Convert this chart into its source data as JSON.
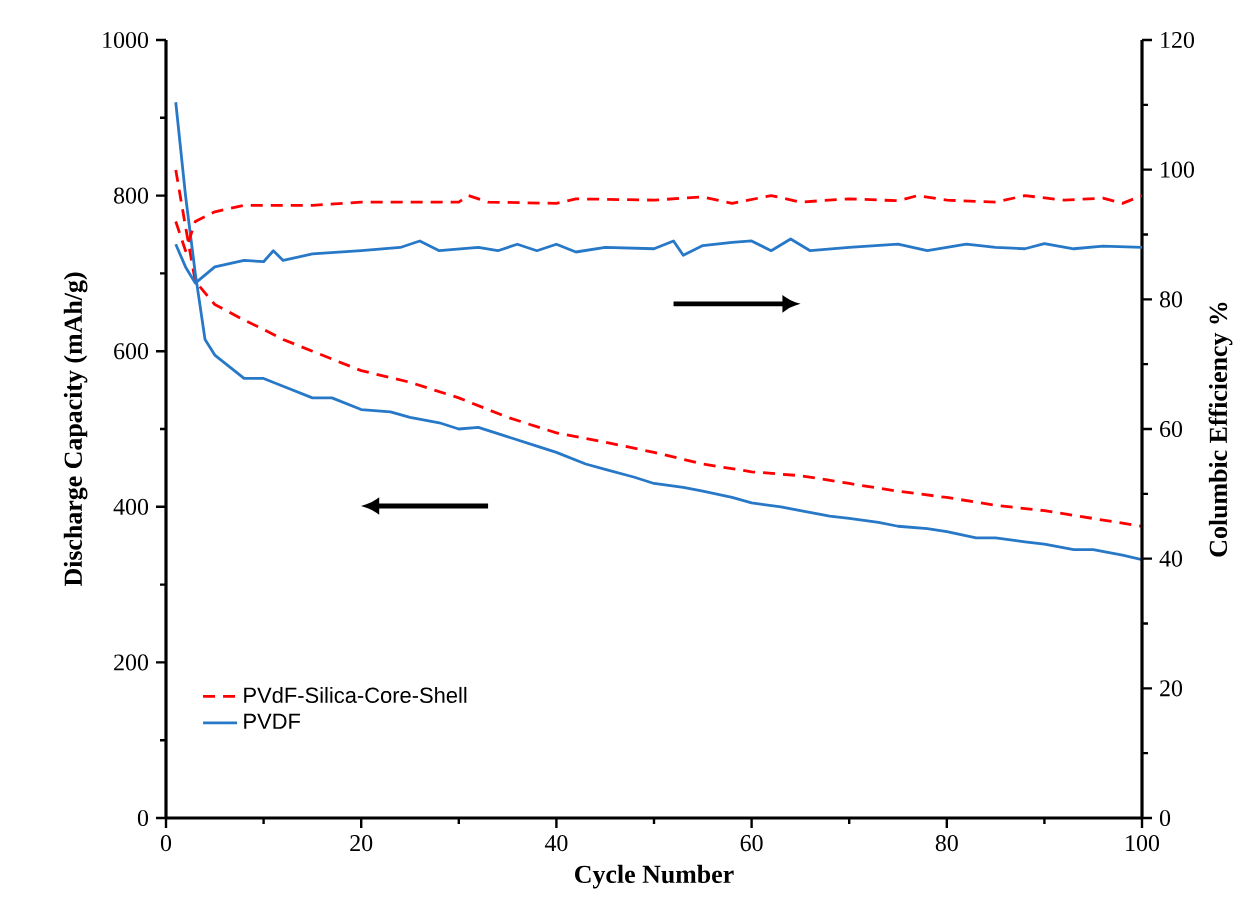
{
  "chart_data": {
    "type": "line",
    "xlabel": "Cycle Number",
    "ylabel": "Discharge Capacity (mAh/g)",
    "y2label": "Columbic Efficiency  %",
    "xlim": [
      0,
      100
    ],
    "xticks": [
      0,
      20,
      40,
      60,
      80,
      100
    ],
    "ylim": [
      0,
      1000
    ],
    "yticks": [
      0,
      200,
      400,
      600,
      800,
      1000
    ],
    "y2lim": [
      0,
      120
    ],
    "y2ticks": [
      0,
      20,
      40,
      60,
      80,
      100,
      120
    ],
    "legend": "bottom left",
    "grid": false,
    "marker": "none",
    "series": [
      {
        "name": "PVdF-Silica-Core-Shell",
        "color": "#ff0000",
        "line_style": "dashed",
        "x": [
          1,
          2,
          3,
          5,
          8,
          10,
          12,
          15,
          20,
          25,
          30,
          35,
          40,
          45,
          50,
          55,
          60,
          65,
          70,
          75,
          80,
          85,
          90,
          95,
          100
        ],
        "values": [
          833,
          760,
          690,
          660,
          640,
          628,
          615,
          600,
          575,
          560,
          540,
          515,
          495,
          483,
          470,
          455,
          445,
          440,
          430,
          420,
          412,
          402,
          395,
          385,
          375
        ]
      },
      {
        "name": "PVDF",
        "color": "#2878c8",
        "line_style": "solid",
        "x": [
          1,
          2,
          3,
          4,
          5,
          7,
          8,
          10,
          12,
          15,
          17,
          20,
          23,
          25,
          28,
          30,
          32,
          35,
          38,
          40,
          43,
          45,
          48,
          50,
          53,
          55,
          58,
          60,
          63,
          65,
          68,
          70,
          73,
          75,
          78,
          80,
          83,
          85,
          88,
          90,
          93,
          95,
          98,
          100
        ],
        "values": [
          920,
          800,
          700,
          615,
          595,
          575,
          565,
          565,
          555,
          540,
          540,
          525,
          522,
          515,
          508,
          500,
          502,
          490,
          478,
          470,
          455,
          448,
          438,
          430,
          425,
          420,
          412,
          405,
          400,
          395,
          388,
          385,
          380,
          375,
          372,
          368,
          360,
          360,
          355,
          352,
          345,
          345,
          338,
          332
        ]
      },
      {
        "color": "#ff0000",
        "line_style": "dashed",
        "axis": "y2",
        "x": [
          1,
          2,
          3,
          5,
          8,
          10,
          15,
          20,
          25,
          30,
          31,
          33,
          40,
          42,
          50,
          55,
          58,
          62,
          65,
          70,
          75,
          77,
          80,
          85,
          88,
          92,
          96,
          98,
          100
        ],
        "values": [
          92,
          87.5,
          92,
          93.5,
          94.5,
          94.5,
          94.5,
          95,
          95,
          95,
          96,
          95,
          94.8,
          95.5,
          95.3,
          95.8,
          94.8,
          96,
          95,
          95.5,
          95.2,
          96,
          95.3,
          95,
          96,
          95.3,
          95.6,
          94.8,
          96
        ]
      },
      {
        "color": "#2878c8",
        "line_style": "solid",
        "axis": "y2",
        "x": [
          1,
          2,
          3,
          5,
          8,
          10,
          11,
          12,
          15,
          20,
          24,
          26,
          28,
          32,
          34,
          36,
          38,
          40,
          42,
          45,
          50,
          52,
          53,
          55,
          58,
          60,
          62,
          64,
          66,
          70,
          75,
          78,
          82,
          85,
          88,
          90,
          93,
          96,
          100
        ],
        "values": [
          88.5,
          85,
          82.5,
          85,
          86,
          85.8,
          87.5,
          86,
          87,
          87.5,
          88,
          89,
          87.5,
          88,
          87.5,
          88.5,
          87.5,
          88.5,
          87.3,
          88,
          87.8,
          89,
          86.8,
          88.3,
          88.8,
          89,
          87.5,
          89.3,
          87.5,
          88,
          88.5,
          87.5,
          88.5,
          88,
          87.8,
          88.6,
          87.8,
          88.2,
          88
        ]
      }
    ]
  }
}
